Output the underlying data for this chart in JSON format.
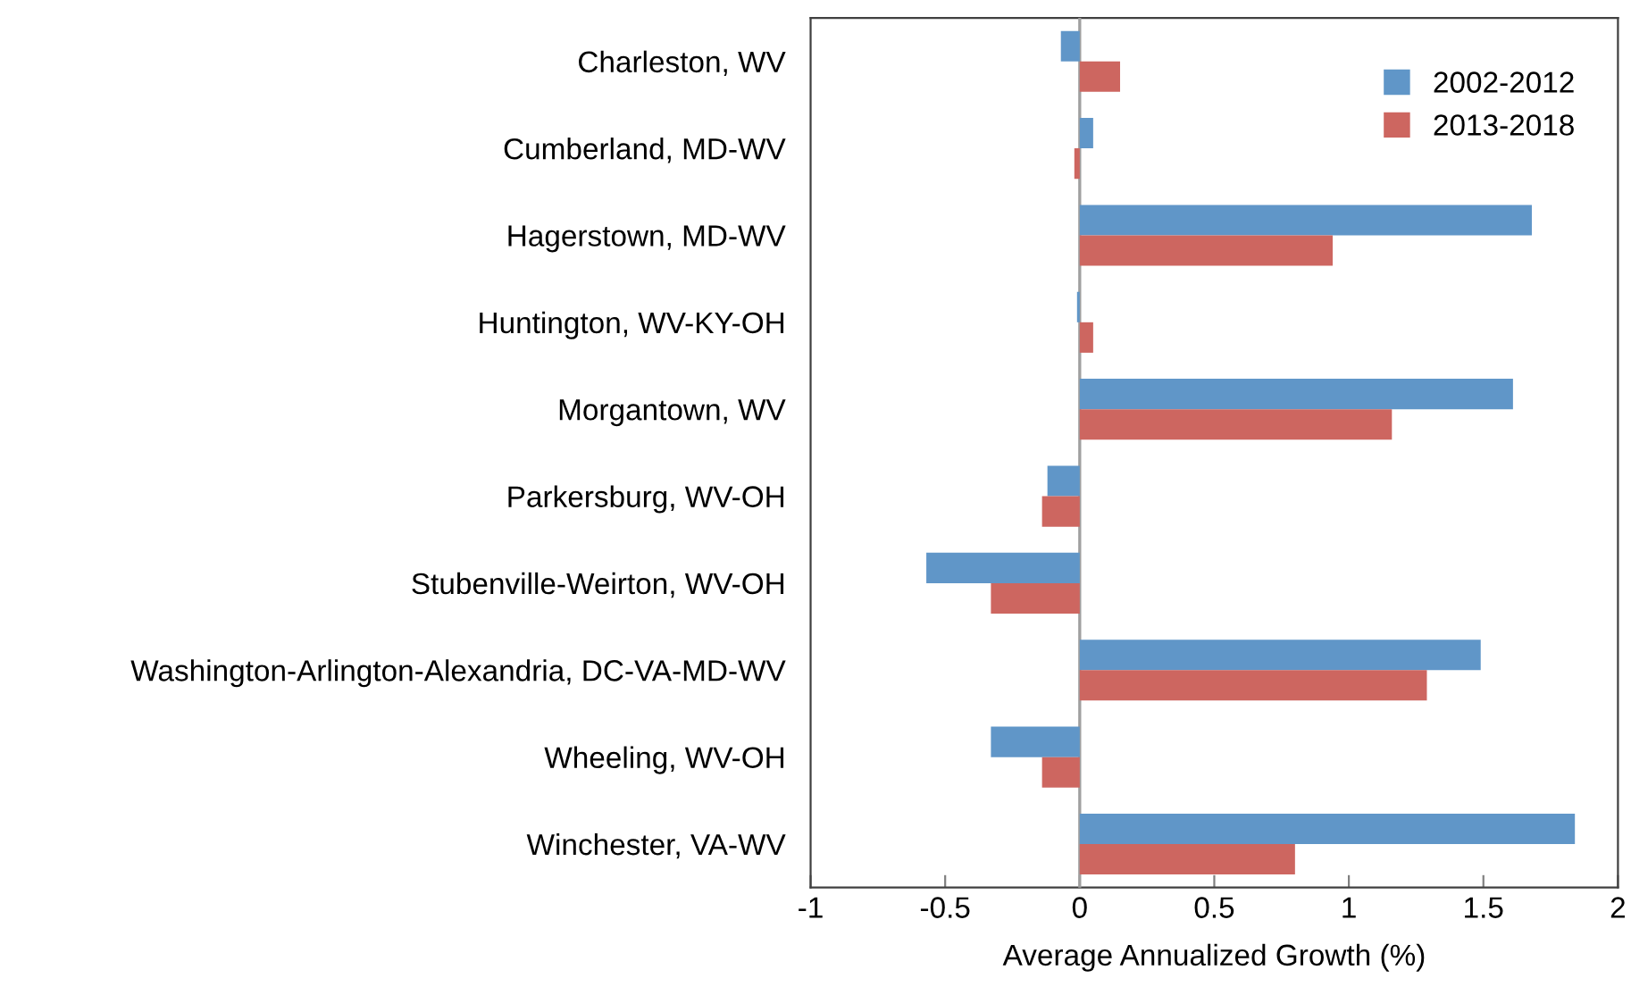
{
  "chart_data": {
    "type": "bar",
    "orientation": "horizontal",
    "xlabel": "Average Annualized Growth (%)",
    "categories": [
      "Charleston, WV",
      "Cumberland, MD-WV",
      "Hagerstown, MD-WV",
      "Huntington, WV-KY-OH",
      "Morgantown, WV",
      "Parkersburg, WV-OH",
      "Stubenville-Weirton, WV-OH",
      "Washington-Arlington-Alexandria, DC-VA-MD-WV",
      "Wheeling, WV-OH",
      "Winchester, VA-WV"
    ],
    "series": [
      {
        "name": "2002-2012",
        "color": "#6096c8",
        "values": [
          -0.07,
          0.05,
          1.68,
          -0.01,
          1.61,
          -0.12,
          -0.57,
          1.49,
          -0.33,
          1.84
        ]
      },
      {
        "name": "2013-2018",
        "color": "#cd6660",
        "values": [
          0.15,
          -0.02,
          0.94,
          0.05,
          1.16,
          -0.14,
          -0.33,
          1.29,
          -0.14,
          0.8
        ]
      }
    ],
    "xlim": [
      -1,
      2
    ],
    "xticks": [
      -1,
      -0.5,
      0,
      0.5,
      1,
      1.5,
      2
    ],
    "grid": false,
    "legend": "top right",
    "ref_lines": [
      {
        "axis": "x",
        "value": 0,
        "color": "#a0a0a0"
      }
    ]
  }
}
